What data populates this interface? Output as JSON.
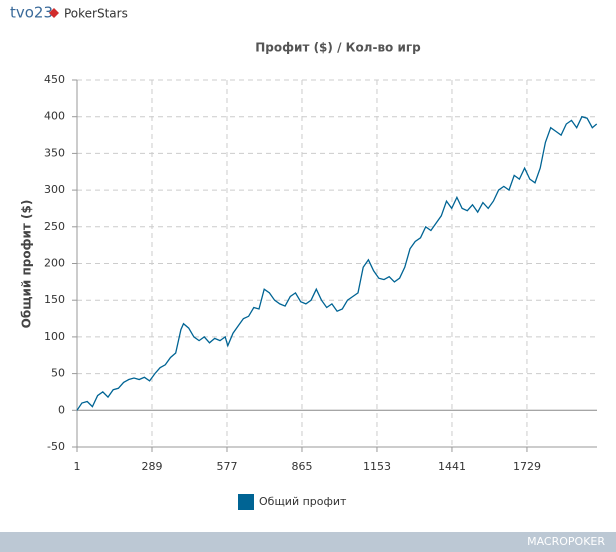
{
  "header": {
    "user": "tvo23",
    "site": "PokerStars"
  },
  "footer": {
    "brand": "MACROPOKER"
  },
  "chart_data": {
    "type": "line",
    "title": "Профит ($) / Кол-во игр",
    "y_label": "Общий профит ($)",
    "x": [
      1,
      20,
      40,
      60,
      80,
      100,
      120,
      140,
      160,
      180,
      200,
      220,
      240,
      260,
      280,
      300,
      320,
      340,
      360,
      380,
      400,
      410,
      430,
      450,
      470,
      490,
      510,
      530,
      550,
      570,
      580,
      600,
      620,
      640,
      660,
      680,
      700,
      720,
      740,
      760,
      780,
      800,
      820,
      840,
      860,
      880,
      900,
      920,
      940,
      960,
      980,
      1000,
      1020,
      1040,
      1060,
      1080,
      1100,
      1120,
      1140,
      1160,
      1180,
      1200,
      1220,
      1240,
      1260,
      1280,
      1300,
      1320,
      1340,
      1360,
      1380,
      1400,
      1420,
      1440,
      1460,
      1480,
      1500,
      1520,
      1540,
      1560,
      1580,
      1600,
      1620,
      1640,
      1660,
      1680,
      1700,
      1720,
      1740,
      1760,
      1780,
      1800,
      1820,
      1840,
      1860,
      1880,
      1900,
      1920,
      1940,
      1960,
      1980,
      1997
    ],
    "series": [
      {
        "name": "Общий профит",
        "color": "#006494",
        "values": [
          0,
          10,
          12,
          5,
          20,
          25,
          18,
          28,
          30,
          38,
          42,
          44,
          42,
          45,
          40,
          50,
          58,
          62,
          72,
          78,
          110,
          118,
          112,
          100,
          95,
          100,
          92,
          98,
          95,
          100,
          88,
          105,
          115,
          125,
          128,
          140,
          138,
          165,
          160,
          150,
          145,
          142,
          155,
          160,
          148,
          145,
          150,
          165,
          150,
          140,
          145,
          135,
          138,
          150,
          155,
          160,
          195,
          205,
          190,
          180,
          178,
          182,
          175,
          180,
          195,
          220,
          230,
          235,
          250,
          245,
          255,
          265,
          285,
          275,
          290,
          275,
          272,
          280,
          270,
          283,
          275,
          285,
          300,
          305,
          300,
          320,
          315,
          330,
          315,
          310,
          330,
          365,
          385,
          380,
          375,
          390,
          395,
          385,
          400,
          398,
          385,
          390
        ]
      }
    ],
    "xlim": [
      1,
      1998
    ],
    "xticks": [
      1,
      289,
      577,
      865,
      1153,
      1441,
      1729
    ],
    "ylim": [
      -50,
      450
    ],
    "yticks": [
      -50,
      0,
      50,
      100,
      150,
      200,
      250,
      300,
      350,
      400,
      450
    ],
    "grid": true
  }
}
